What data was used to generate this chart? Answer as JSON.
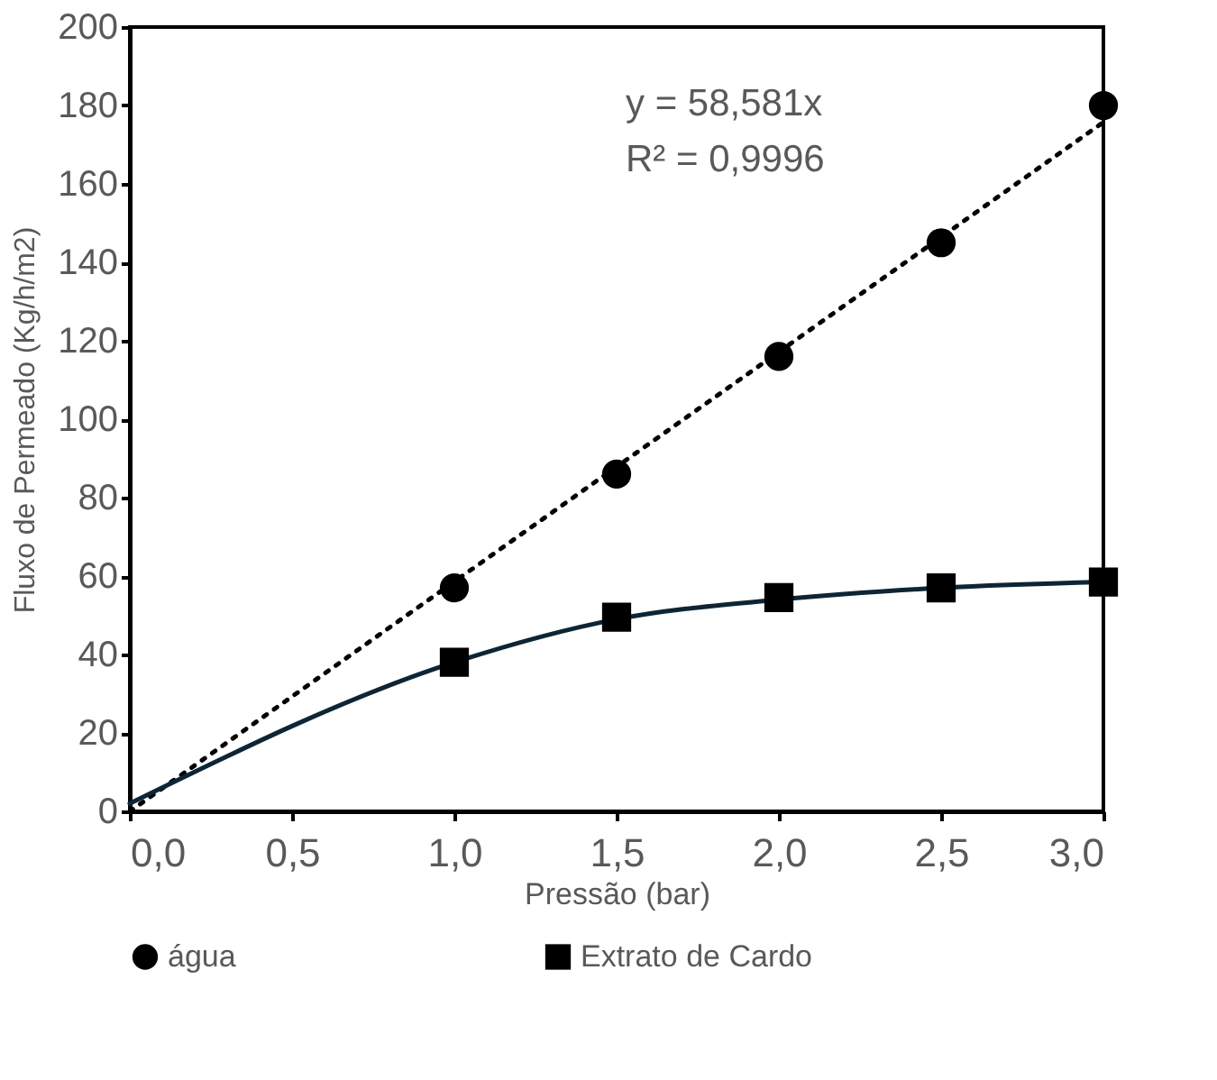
{
  "chart_data": {
    "type": "scatter",
    "xlabel": "Pressão (bar)",
    "ylabel": "Fluxo de Permeado (Kg/h/m2)",
    "xlim": [
      0,
      3
    ],
    "ylim": [
      0,
      200
    ],
    "xticks": [
      {
        "value": 0,
        "label": "0,0"
      },
      {
        "value": 0.5,
        "label": "0,5"
      },
      {
        "value": 1,
        "label": "1,0"
      },
      {
        "value": 1.5,
        "label": "1,5"
      },
      {
        "value": 2,
        "label": "2,0"
      },
      {
        "value": 2.5,
        "label": "2,5"
      },
      {
        "value": 3,
        "label": "3,0"
      }
    ],
    "yticks": [
      0,
      20,
      40,
      60,
      80,
      100,
      120,
      140,
      160,
      180,
      200
    ],
    "grid": false,
    "legend": "bottom",
    "annotations": [
      "y = 58,581x",
      "R² = 0,9996"
    ],
    "series": [
      {
        "type": "line",
        "x": [
          0,
          3
        ],
        "values": [
          0,
          175.74
        ],
        "color": "#000000",
        "line_style": "dotted",
        "marker": "none"
      },
      {
        "type": "line",
        "x": [
          0,
          1,
          1.5,
          2,
          2.5,
          3
        ],
        "values": [
          2,
          38,
          49,
          54,
          57,
          58.5
        ],
        "color": "#0d2535",
        "line_style": "solid",
        "marker": "none"
      },
      {
        "name": "água",
        "type": "scatter",
        "x": [
          1,
          1.5,
          2,
          2.5,
          3
        ],
        "values": [
          57,
          86,
          116,
          145,
          180
        ],
        "color": "#000000",
        "marker": "circle"
      },
      {
        "name": "Extrato de Cardo",
        "type": "scatter",
        "x": [
          1,
          1.5,
          2,
          2.5,
          3
        ],
        "values": [
          38,
          49.5,
          54.5,
          57,
          58.5
        ],
        "color": "#000000",
        "marker": "square"
      }
    ]
  }
}
